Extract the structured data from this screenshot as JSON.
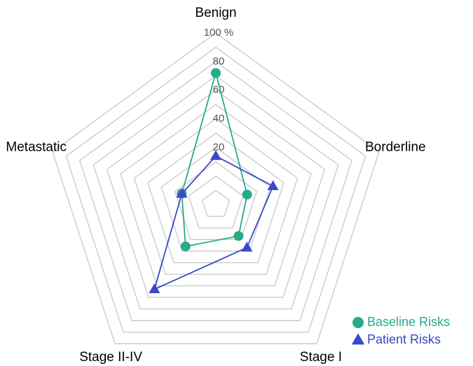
{
  "chart_data": {
    "type": "radar",
    "categories": [
      "Benign",
      "Borderline",
      "Stage I",
      "Stage II-IV",
      "Metastatic"
    ],
    "rlim": [
      -20,
      100
    ],
    "rticks": [
      20,
      40,
      60,
      80,
      {
        "value": 100,
        "label": "100 %"
      }
    ],
    "minor_rticks": [
      -10,
      0,
      10,
      30,
      50,
      70,
      90
    ],
    "grid": true,
    "legend": "lower right",
    "series": [
      {
        "name": "Baseline Risks",
        "color": "#27ab88",
        "marker": "circle",
        "values": [
          72,
          3,
          7,
          16,
          5
        ]
      },
      {
        "name": "Patient Risks",
        "color": "#3a48c8",
        "marker": "triangle",
        "values": [
          14,
          22,
          17,
          53,
          5
        ]
      }
    ]
  }
}
